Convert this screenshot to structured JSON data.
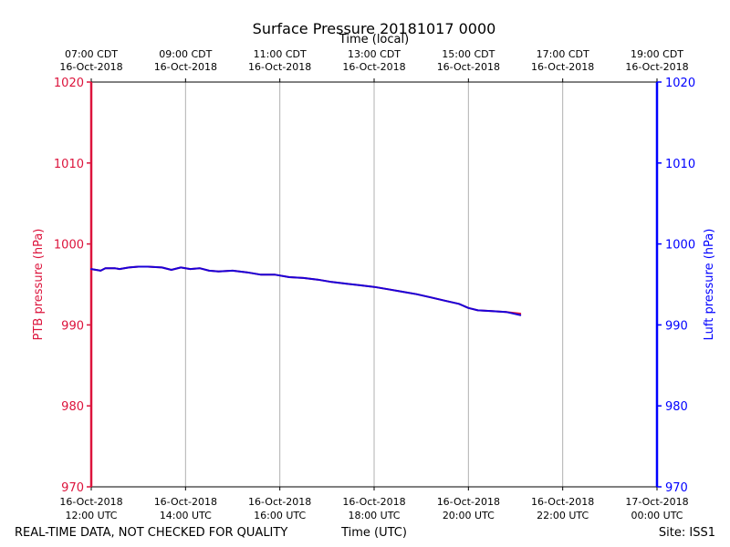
{
  "colors": {
    "ptb": "#dc143c",
    "luft": "#0000ff",
    "ptb_line": "#dc143c",
    "luft_line": "#1a00d8",
    "grid": "#b0b0b0",
    "text": "#000000"
  },
  "footer": {
    "left": "REAL-TIME DATA, NOT CHECKED FOR QUALITY",
    "center": "Time (UTC)",
    "right": "Site: ISS1"
  },
  "chart_data": {
    "type": "line",
    "title": "Surface Pressure 20181017 0000",
    "top_axis_label": "Time (local)",
    "xlabel": "Time (UTC)",
    "ylabel_left": "PTB pressure (hPa)",
    "ylabel_right": "Luft pressure (hPa)",
    "x_unit": "hours since 16-Oct-2018 12:00 UTC",
    "xlim": [
      0,
      12
    ],
    "ylim": [
      970,
      1020
    ],
    "yticks": [
      970,
      980,
      990,
      1000,
      1010,
      1020
    ],
    "ytick_labels": [
      "970",
      "980",
      "990",
      "1000",
      "1010",
      "1020"
    ],
    "grid": "vertical",
    "bottom_ticks": [
      {
        "x": 0,
        "line1": "16-Oct-2018",
        "line2": "12:00 UTC"
      },
      {
        "x": 2,
        "line1": "16-Oct-2018",
        "line2": "14:00 UTC"
      },
      {
        "x": 4,
        "line1": "16-Oct-2018",
        "line2": "16:00 UTC"
      },
      {
        "x": 6,
        "line1": "16-Oct-2018",
        "line2": "18:00 UTC"
      },
      {
        "x": 8,
        "line1": "16-Oct-2018",
        "line2": "20:00 UTC"
      },
      {
        "x": 10,
        "line1": "16-Oct-2018",
        "line2": "22:00 UTC"
      },
      {
        "x": 12,
        "line1": "17-Oct-2018",
        "line2": "00:00 UTC"
      }
    ],
    "top_ticks": [
      {
        "x": 0,
        "line1": "07:00 CDT",
        "line2": "16-Oct-2018"
      },
      {
        "x": 2,
        "line1": "09:00 CDT",
        "line2": "16-Oct-2018"
      },
      {
        "x": 4,
        "line1": "11:00 CDT",
        "line2": "16-Oct-2018"
      },
      {
        "x": 6,
        "line1": "13:00 CDT",
        "line2": "16-Oct-2018"
      },
      {
        "x": 8,
        "line1": "15:00 CDT",
        "line2": "16-Oct-2018"
      },
      {
        "x": 10,
        "line1": "17:00 CDT",
        "line2": "16-Oct-2018"
      },
      {
        "x": 12,
        "line1": "19:00 CDT",
        "line2": "16-Oct-2018"
      }
    ],
    "series": [
      {
        "name": "PTB pressure",
        "axis": "left",
        "x": [
          0.0,
          0.2,
          0.3,
          0.5,
          0.6,
          0.8,
          1.0,
          1.2,
          1.5,
          1.7,
          1.9,
          2.1,
          2.3,
          2.5,
          2.7,
          3.0,
          3.3,
          3.6,
          3.9,
          4.2,
          4.5,
          4.8,
          5.1,
          5.4,
          5.7,
          6.0,
          6.3,
          6.6,
          6.9,
          7.2,
          7.5,
          7.8,
          8.0,
          8.2,
          8.5,
          8.8,
          9.1
        ],
        "values": [
          996.9,
          996.7,
          997.0,
          997.0,
          996.9,
          997.1,
          997.2,
          997.2,
          997.1,
          996.8,
          997.1,
          996.9,
          997.0,
          996.7,
          996.6,
          996.7,
          996.5,
          996.2,
          996.2,
          995.9,
          995.8,
          995.6,
          995.3,
          995.1,
          994.9,
          994.7,
          994.4,
          994.1,
          993.8,
          993.4,
          993.0,
          992.6,
          992.1,
          991.8,
          991.7,
          991.6,
          991.4
        ]
      },
      {
        "name": "Luft pressure",
        "axis": "right",
        "x": [
          0.0,
          0.2,
          0.3,
          0.5,
          0.6,
          0.8,
          1.0,
          1.2,
          1.5,
          1.7,
          1.9,
          2.1,
          2.3,
          2.5,
          2.7,
          3.0,
          3.3,
          3.6,
          3.9,
          4.2,
          4.5,
          4.8,
          5.1,
          5.4,
          5.7,
          6.0,
          6.3,
          6.6,
          6.9,
          7.2,
          7.5,
          7.8,
          8.0,
          8.2,
          8.5,
          8.8,
          9.1
        ],
        "values": [
          996.9,
          996.7,
          997.0,
          997.0,
          996.9,
          997.1,
          997.2,
          997.2,
          997.1,
          996.8,
          997.1,
          996.9,
          997.0,
          996.7,
          996.6,
          996.7,
          996.5,
          996.2,
          996.2,
          995.9,
          995.8,
          995.6,
          995.3,
          995.1,
          994.9,
          994.7,
          994.4,
          994.1,
          993.8,
          993.4,
          993.0,
          992.6,
          992.1,
          991.8,
          991.7,
          991.6,
          991.2
        ]
      }
    ]
  }
}
